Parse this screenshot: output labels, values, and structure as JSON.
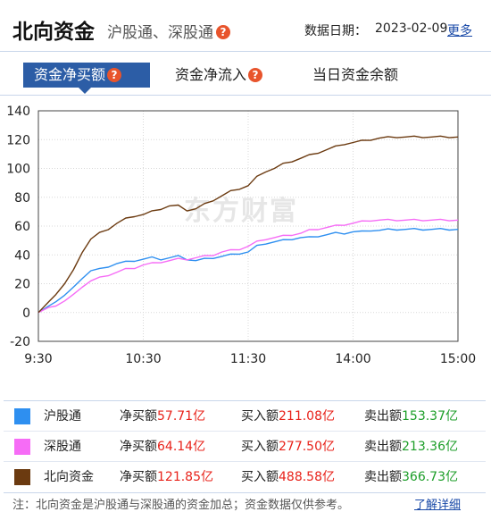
{
  "header": {
    "title": "北向资金",
    "subtitle": "沪股通、深股通",
    "date_label": "数据日期：",
    "date_value": "2023-02-09",
    "more_link": "更多"
  },
  "tabs": [
    {
      "label": "资金净买额",
      "active": true,
      "has_help": true
    },
    {
      "label": "资金净流入",
      "active": false,
      "has_help": true
    },
    {
      "label": "当日资金余额",
      "active": false,
      "has_help": false
    }
  ],
  "watermark": "东方财富",
  "colors": {
    "hgt": "#2e8ff0",
    "sgt": "#f66cf6",
    "bxzj": "#6b3a10",
    "accent": "#2c5da6",
    "help_icon": "#e8542c",
    "positive": "#e8221a",
    "negative": "#1d9e29"
  },
  "chart_data": {
    "type": "line",
    "x_ticks": [
      "9:30",
      "10:30",
      "11:30",
      "14:00",
      "15:00"
    ],
    "y_ticks": [
      -20,
      0,
      20,
      40,
      60,
      80,
      100,
      120,
      140
    ],
    "ylim": [
      -20,
      140
    ],
    "grid": true,
    "series": [
      {
        "name": "沪股通",
        "color": "#2e8ff0",
        "x": [
          0,
          6,
          10,
          15,
          20,
          25,
          30,
          35,
          40,
          45,
          50,
          55,
          60,
          65,
          70,
          75,
          80,
          85,
          90,
          95,
          100,
          105,
          110,
          115,
          120,
          125,
          130,
          135,
          140,
          145,
          150,
          155,
          160,
          165,
          170,
          175,
          180,
          185,
          190,
          195,
          200,
          205,
          210,
          215,
          220,
          225,
          230,
          235,
          240
        ],
        "values": [
          0,
          4,
          8,
          12,
          17,
          24,
          29,
          30,
          32,
          34,
          35,
          36,
          37,
          38,
          37,
          38,
          39,
          37,
          36,
          37,
          38,
          39,
          40,
          41,
          42,
          46,
          48,
          49,
          50,
          51,
          52,
          52,
          53,
          54,
          55,
          55,
          56,
          56,
          57,
          57,
          57.5,
          57.71,
          57.71,
          57.71,
          57.71,
          57.71,
          57.71,
          57.71,
          57.71
        ]
      },
      {
        "name": "深股通",
        "color": "#f66cf6",
        "x": [
          0,
          6,
          10,
          15,
          20,
          25,
          30,
          35,
          40,
          45,
          50,
          55,
          60,
          65,
          70,
          75,
          80,
          85,
          90,
          95,
          100,
          105,
          110,
          115,
          120,
          125,
          130,
          135,
          140,
          145,
          150,
          155,
          160,
          165,
          170,
          175,
          180,
          185,
          190,
          195,
          200,
          205,
          210,
          215,
          220,
          225,
          230,
          235,
          240
        ],
        "values": [
          0,
          3,
          5,
          8,
          12,
          18,
          22,
          24,
          26,
          28,
          30,
          31,
          33,
          34,
          35,
          36,
          37,
          37,
          38,
          39,
          40,
          42,
          43,
          44,
          46,
          49,
          51,
          52,
          53,
          54,
          55,
          57,
          58,
          59,
          60,
          61,
          62,
          63,
          64,
          64.14,
          64.14,
          64.14,
          64.14,
          64.14,
          64.14,
          64.14,
          64.14,
          64.14,
          64.14
        ]
      },
      {
        "name": "北向资金",
        "color": "#6b3a10",
        "x": [
          0,
          6,
          10,
          15,
          20,
          25,
          30,
          35,
          40,
          45,
          50,
          55,
          60,
          65,
          70,
          75,
          80,
          85,
          90,
          95,
          100,
          105,
          110,
          115,
          120,
          125,
          130,
          135,
          140,
          145,
          150,
          155,
          160,
          165,
          170,
          175,
          180,
          185,
          190,
          195,
          200,
          205,
          210,
          215,
          220,
          225,
          230,
          235,
          240
        ],
        "values": [
          0,
          7,
          13,
          20,
          29,
          42,
          51,
          55,
          58,
          62,
          65,
          67,
          68,
          70,
          72,
          74,
          74,
          71,
          72,
          75,
          78,
          81,
          84,
          86,
          88,
          94,
          98,
          100,
          103,
          105,
          107,
          109,
          111,
          113,
          115,
          117,
          118,
          119,
          120,
          121,
          121.5,
          121.85,
          121.85,
          121.85,
          121.85,
          121.85,
          121.85,
          121.85,
          121.85
        ]
      }
    ]
  },
  "legend": [
    {
      "name": "沪股通",
      "net_label": "净买额",
      "net_value": "57.71亿",
      "buy_label": "买入额",
      "buy_value": "211.08亿",
      "sell_label": "卖出额",
      "sell_value": "153.37亿"
    },
    {
      "name": "深股通",
      "net_label": "净买额",
      "net_value": "64.14亿",
      "buy_label": "买入额",
      "buy_value": "277.50亿",
      "sell_label": "卖出额",
      "sell_value": "213.36亿"
    },
    {
      "name": "北向资金",
      "net_label": "净买额",
      "net_value": "121.85亿",
      "buy_label": "买入额",
      "buy_value": "488.58亿",
      "sell_label": "卖出额",
      "sell_value": "366.73亿"
    }
  ],
  "footer": {
    "note": "注：北向资金是沪股通与深股通的资金加总；资金数据仅供参考。",
    "detail_link": "了解详细"
  }
}
